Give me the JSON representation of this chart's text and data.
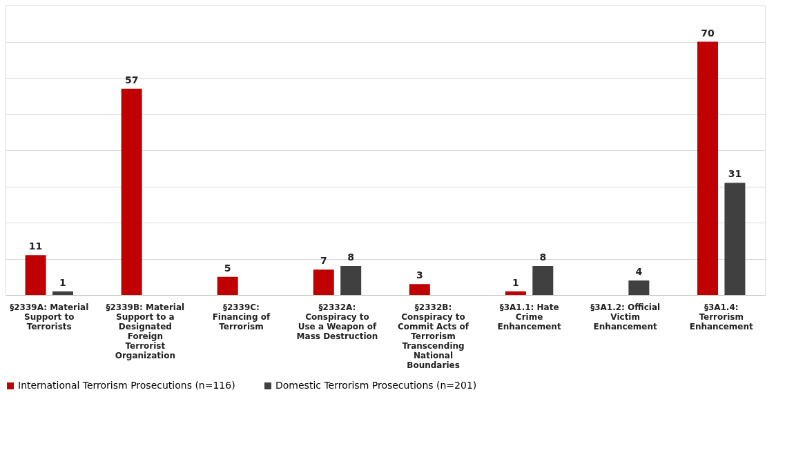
{
  "chart_data": {
    "type": "bar",
    "categories": [
      "§2339A: Material Support to Terrorists",
      "§2339B: Material Support to a Designated Foreign Terrorist Organization",
      "§2339C: Financing of Terrorism",
      "§2332A: Conspiracy to Use a Weapon of Mass Destruction",
      "§2332B: Conspiracy to Commit Acts of Terrorism Transcending National Boundaries",
      "§3A1.1: Hate Crime Enhancement",
      "§3A1.2: Official Victim Enhancement",
      "§3A1.4: Terrorism Enhancement"
    ],
    "series": [
      {
        "name": "International Terrorism Prosecutions (n=116)",
        "color": "#c00000",
        "values": [
          11,
          57,
          5,
          7,
          3,
          1,
          null,
          70
        ]
      },
      {
        "name": "Domestic Terrorism Prosecutions (n=201)",
        "color": "#404040",
        "values": [
          1,
          null,
          null,
          8,
          null,
          8,
          4,
          31
        ]
      }
    ],
    "ylim": [
      0,
      80
    ],
    "yticks": [
      {
        "value": 0,
        "label": null
      },
      {
        "value": 10,
        "label": null
      },
      {
        "value": 20,
        "label": null
      },
      {
        "value": 30,
        "label": null
      },
      {
        "value": 40,
        "label": null
      },
      {
        "value": 50,
        "label": null
      },
      {
        "value": 60,
        "label": null
      },
      {
        "value": 70,
        "label": null
      },
      {
        "value": 80,
        "label": null
      }
    ],
    "grid": "y",
    "tick_labels": "x",
    "data_labels": true,
    "legend": "bottom"
  }
}
